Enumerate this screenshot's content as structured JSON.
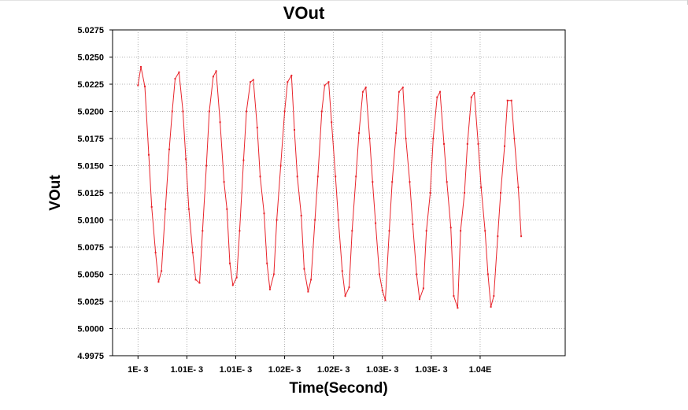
{
  "chart_data": {
    "type": "line",
    "title": "VOut",
    "xlabel": "Time(Second)",
    "ylabel": "VOut",
    "xlim": [
      0.0009974,
      0.0010437
    ],
    "ylim": [
      4.9975,
      5.0275
    ],
    "grid": true,
    "line_color": "#e8242b",
    "y_ticks": [
      "5.0275",
      "5.0250",
      "5.0225",
      "5.0200",
      "5.0175",
      "5.0150",
      "5.0125",
      "5.0100",
      "5.0075",
      "5.0050",
      "5.0025",
      "5.0000",
      "4.9975"
    ],
    "y_tick_values": [
      5.0275,
      5.025,
      5.0225,
      5.02,
      5.0175,
      5.015,
      5.0125,
      5.01,
      5.0075,
      5.005,
      5.0025,
      5.0,
      4.9975
    ],
    "x_ticks": [
      "1E- 3",
      "1.01E- 3",
      "1.01E- 3",
      "1.02E- 3",
      "1.02E- 3",
      "1.03E- 3",
      "1.03E- 3",
      "1.04E"
    ],
    "x_tick_values": [
      0.001,
      0.001005,
      0.00101,
      0.001015,
      0.00102,
      0.001025,
      0.00103,
      0.001035
    ],
    "series": [
      {
        "values": [
          [
            0.001,
            5.0224
          ],
          [
            0.0010003,
            5.0241
          ],
          [
            0.0010007,
            5.0223
          ],
          [
            0.0010011,
            5.016
          ],
          [
            0.0010014,
            5.0112
          ],
          [
            0.0010018,
            5.007
          ],
          [
            0.0010021,
            5.0043
          ],
          [
            0.0010024,
            5.0053
          ],
          [
            0.0010028,
            5.011
          ],
          [
            0.0010032,
            5.0165
          ],
          [
            0.0010035,
            5.02
          ],
          [
            0.0010038,
            5.023
          ],
          [
            0.0010042,
            5.0236
          ],
          [
            0.0010046,
            5.02
          ],
          [
            0.0010049,
            5.0156
          ],
          [
            0.0010052,
            5.011
          ],
          [
            0.0010056,
            5.007
          ],
          [
            0.0010059,
            5.0045
          ],
          [
            0.0010063,
            5.0042
          ],
          [
            0.0010066,
            5.009
          ],
          [
            0.001007,
            5.015
          ],
          [
            0.0010073,
            5.02
          ],
          [
            0.0010077,
            5.0232
          ],
          [
            0.001008,
            5.0237
          ],
          [
            0.0010084,
            5.019
          ],
          [
            0.0010088,
            5.0135
          ],
          [
            0.0010091,
            5.011
          ],
          [
            0.0010094,
            5.006
          ],
          [
            0.0010097,
            5.004
          ],
          [
            0.0010101,
            5.0047
          ],
          [
            0.0010104,
            5.009
          ],
          [
            0.0010108,
            5.0155
          ],
          [
            0.0010111,
            5.02
          ],
          [
            0.0010115,
            5.0227
          ],
          [
            0.0010118,
            5.0229
          ],
          [
            0.0010122,
            5.0185
          ],
          [
            0.0010125,
            5.014
          ],
          [
            0.0010129,
            5.0106
          ],
          [
            0.0010132,
            5.006
          ],
          [
            0.0010135,
            5.0036
          ],
          [
            0.0010139,
            5.005
          ],
          [
            0.0010142,
            5.01
          ],
          [
            0.0010146,
            5.015
          ],
          [
            0.001015,
            5.02
          ],
          [
            0.0010153,
            5.0227
          ],
          [
            0.0010157,
            5.0233
          ],
          [
            0.001016,
            5.0183
          ],
          [
            0.0010163,
            5.014
          ],
          [
            0.0010167,
            5.0104
          ],
          [
            0.001017,
            5.0055
          ],
          [
            0.0010174,
            5.0034
          ],
          [
            0.0010177,
            5.0045
          ],
          [
            0.0010181,
            5.01
          ],
          [
            0.0010184,
            5.014
          ],
          [
            0.0010188,
            5.02
          ],
          [
            0.0010191,
            5.0224
          ],
          [
            0.0010195,
            5.0227
          ],
          [
            0.0010198,
            5.019
          ],
          [
            0.0010202,
            5.014
          ],
          [
            0.0010205,
            5.01
          ],
          [
            0.0010209,
            5.0053
          ],
          [
            0.0010212,
            5.003
          ],
          [
            0.0010216,
            5.0038
          ],
          [
            0.0010219,
            5.009
          ],
          [
            0.0010223,
            5.014
          ],
          [
            0.0010226,
            5.018
          ],
          [
            0.001023,
            5.0218
          ],
          [
            0.0010233,
            5.0222
          ],
          [
            0.0010237,
            5.0175
          ],
          [
            0.001024,
            5.0135
          ],
          [
            0.0010243,
            5.0097
          ],
          [
            0.0010247,
            5.005
          ],
          [
            0.001025,
            5.0035
          ],
          [
            0.0010253,
            5.0026
          ],
          [
            0.0010257,
            5.009
          ],
          [
            0.001026,
            5.0135
          ],
          [
            0.0010264,
            5.018
          ],
          [
            0.0010267,
            5.0218
          ],
          [
            0.0010271,
            5.0222
          ],
          [
            0.0010274,
            5.0175
          ],
          [
            0.0010278,
            5.0135
          ],
          [
            0.0010281,
            5.0096
          ],
          [
            0.0010285,
            5.005
          ],
          [
            0.0010288,
            5.0027
          ],
          [
            0.0010292,
            5.0037
          ],
          [
            0.0010295,
            5.009
          ],
          [
            0.0010299,
            5.0125
          ],
          [
            0.0010302,
            5.0175
          ],
          [
            0.0010306,
            5.0213
          ],
          [
            0.0010309,
            5.0218
          ],
          [
            0.0010313,
            5.017
          ],
          [
            0.0010316,
            5.0135
          ],
          [
            0.001032,
            5.0093
          ],
          [
            0.0010323,
            5.003
          ],
          [
            0.0010327,
            5.0019
          ],
          [
            0.001033,
            5.009
          ],
          [
            0.0010334,
            5.0125
          ],
          [
            0.0010337,
            5.017
          ],
          [
            0.0010341,
            5.0213
          ],
          [
            0.0010344,
            5.0217
          ],
          [
            0.0010348,
            5.017
          ],
          [
            0.0010351,
            5.013
          ],
          [
            0.0010355,
            5.009
          ],
          [
            0.0010358,
            5.005
          ],
          [
            0.0010361,
            5.002
          ],
          [
            0.0010364,
            5.003
          ],
          [
            0.0010368,
            5.0085
          ],
          [
            0.0010371,
            5.0125
          ],
          [
            0.0010375,
            5.0168
          ],
          [
            0.0010378,
            5.021
          ],
          [
            0.0010382,
            5.021
          ],
          [
            0.0010385,
            5.0175
          ],
          [
            0.0010389,
            5.013
          ],
          [
            0.0010392,
            5.0085
          ]
        ]
      }
    ]
  }
}
